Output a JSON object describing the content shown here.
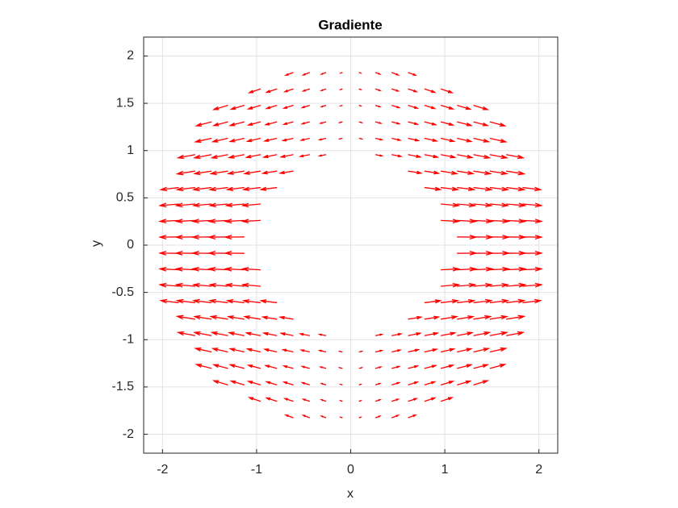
{
  "chart_data": {
    "type": "quiver",
    "title": "Gradiente",
    "x_label": "x",
    "y_label": "y",
    "color": "#ff0000",
    "grid": true,
    "xlim": [
      -2.2,
      2.2
    ],
    "ylim": [
      -2.2,
      2.2
    ],
    "xticks": [
      -2,
      -1,
      0,
      1,
      2
    ],
    "yticks": [
      -2,
      -1.5,
      -1,
      -0.5,
      0,
      0.5,
      1,
      1.5,
      2
    ],
    "x": [
      -2,
      -1.826,
      -1.652,
      -1.478,
      -1.304,
      -1.13,
      -0.957,
      -0.783,
      -0.609,
      -0.435,
      -0.261,
      -0.087,
      0.087,
      0.261,
      0.435,
      0.609,
      0.783,
      0.957,
      1.13,
      1.304,
      1.478,
      1.652,
      1.826,
      2
    ],
    "y": [
      -2,
      -1.826,
      -1.652,
      -1.478,
      -1.304,
      -1.13,
      -0.957,
      -0.783,
      -0.609,
      -0.435,
      -0.261,
      -0.087,
      0.087,
      0.261,
      0.435,
      0.609,
      0.783,
      0.957,
      1.13,
      1.304,
      1.478,
      1.652,
      1.826,
      2
    ],
    "u": [
      [
        null,
        null,
        null,
        null,
        null,
        null,
        null,
        null,
        null,
        null,
        null,
        null,
        null,
        null,
        null,
        null,
        null,
        null,
        null,
        null,
        null,
        null,
        null,
        null
      ],
      [
        null,
        null,
        null,
        null,
        null,
        null,
        null,
        null,
        -0.08,
        -0.07,
        -0.05,
        -0.02,
        0.02,
        0.05,
        0.07,
        0.08,
        null,
        null,
        null,
        null,
        null,
        null,
        null,
        null
      ],
      [
        null,
        null,
        null,
        null,
        null,
        null,
        -0.12,
        -0.11,
        -0.09,
        -0.07,
        -0.05,
        -0.02,
        0.02,
        0.05,
        0.07,
        0.09,
        0.11,
        0.12,
        null,
        null,
        null,
        null,
        null,
        null
      ],
      [
        null,
        null,
        null,
        null,
        -0.15,
        -0.14,
        -0.13,
        -0.11,
        -0.1,
        -0.08,
        -0.05,
        -0.02,
        0.02,
        0.05,
        0.08,
        0.1,
        0.11,
        0.13,
        0.14,
        0.15,
        null,
        null,
        null,
        null
      ],
      [
        null,
        null,
        null,
        -0.16,
        -0.15,
        -0.15,
        -0.13,
        -0.12,
        -0.1,
        -0.08,
        -0.06,
        -0.03,
        0.03,
        0.06,
        0.08,
        0.1,
        0.12,
        0.13,
        0.15,
        0.15,
        0.16,
        null,
        null,
        null
      ],
      [
        null,
        null,
        null,
        -0.17,
        -0.16,
        -0.15,
        -0.14,
        -0.13,
        -0.11,
        -0.09,
        -0.07,
        -0.03,
        0.03,
        0.07,
        0.09,
        0.11,
        0.13,
        0.14,
        0.15,
        0.16,
        0.17,
        null,
        null,
        null
      ],
      [
        null,
        null,
        -0.18,
        -0.18,
        -0.17,
        -0.16,
        -0.15,
        -0.14,
        -0.13,
        -0.1,
        -0.07,
        null,
        null,
        0.07,
        0.1,
        0.13,
        0.14,
        0.15,
        0.16,
        0.17,
        0.18,
        0.18,
        null,
        null
      ],
      [
        null,
        null,
        -0.19,
        -0.18,
        -0.18,
        -0.17,
        -0.17,
        -0.15,
        -0.14,
        null,
        null,
        null,
        null,
        null,
        null,
        0.14,
        0.15,
        0.17,
        0.17,
        0.18,
        0.18,
        0.19,
        null,
        null
      ],
      [
        null,
        -0.19,
        -0.19,
        -0.19,
        -0.19,
        -0.18,
        -0.18,
        -0.17,
        null,
        null,
        null,
        null,
        null,
        null,
        null,
        null,
        0.17,
        0.18,
        0.18,
        0.19,
        0.19,
        0.19,
        0.19,
        null
      ],
      [
        null,
        -0.2,
        -0.2,
        -0.19,
        -0.19,
        -0.19,
        -0.19,
        null,
        null,
        null,
        null,
        null,
        null,
        null,
        null,
        null,
        null,
        0.19,
        0.19,
        0.19,
        0.19,
        0.2,
        0.2,
        null
      ],
      [
        null,
        -0.2,
        -0.2,
        -0.2,
        -0.2,
        -0.2,
        -0.19,
        null,
        null,
        null,
        null,
        null,
        null,
        null,
        null,
        null,
        null,
        0.19,
        0.2,
        0.2,
        0.2,
        0.2,
        0.2,
        null
      ],
      [
        null,
        -0.2,
        -0.2,
        -0.2,
        -0.2,
        -0.2,
        null,
        null,
        null,
        null,
        null,
        null,
        null,
        null,
        null,
        null,
        null,
        null,
        0.2,
        0.2,
        0.2,
        0.2,
        0.2,
        null
      ],
      [
        null,
        -0.2,
        -0.2,
        -0.2,
        -0.2,
        -0.2,
        null,
        null,
        null,
        null,
        null,
        null,
        null,
        null,
        null,
        null,
        null,
        null,
        0.2,
        0.2,
        0.2,
        0.2,
        0.2,
        null
      ],
      [
        null,
        -0.2,
        -0.2,
        -0.2,
        -0.2,
        -0.2,
        -0.19,
        null,
        null,
        null,
        null,
        null,
        null,
        null,
        null,
        null,
        null,
        0.19,
        0.2,
        0.2,
        0.2,
        0.2,
        0.2,
        null
      ],
      [
        null,
        -0.2,
        -0.2,
        -0.19,
        -0.19,
        -0.19,
        -0.19,
        null,
        null,
        null,
        null,
        null,
        null,
        null,
        null,
        null,
        null,
        0.19,
        0.19,
        0.19,
        0.19,
        0.2,
        0.2,
        null
      ],
      [
        null,
        -0.19,
        -0.19,
        -0.19,
        -0.19,
        -0.18,
        -0.18,
        -0.17,
        null,
        null,
        null,
        null,
        null,
        null,
        null,
        null,
        0.17,
        0.18,
        0.18,
        0.19,
        0.19,
        0.19,
        0.19,
        null
      ],
      [
        null,
        null,
        -0.19,
        -0.18,
        -0.18,
        -0.17,
        -0.17,
        -0.15,
        -0.14,
        null,
        null,
        null,
        null,
        null,
        null,
        0.14,
        0.15,
        0.17,
        0.17,
        0.18,
        0.18,
        0.19,
        null,
        null
      ],
      [
        null,
        null,
        -0.18,
        -0.18,
        -0.17,
        -0.16,
        -0.15,
        -0.14,
        -0.13,
        -0.1,
        -0.07,
        null,
        null,
        0.07,
        0.1,
        0.13,
        0.14,
        0.15,
        0.16,
        0.17,
        0.18,
        0.18,
        null,
        null
      ],
      [
        null,
        null,
        null,
        -0.17,
        -0.16,
        -0.15,
        -0.14,
        -0.13,
        -0.11,
        -0.09,
        -0.07,
        -0.03,
        0.03,
        0.07,
        0.09,
        0.11,
        0.13,
        0.14,
        0.15,
        0.16,
        0.17,
        null,
        null,
        null
      ],
      [
        null,
        null,
        null,
        -0.16,
        -0.15,
        -0.15,
        -0.13,
        -0.12,
        -0.1,
        -0.08,
        -0.06,
        -0.03,
        0.03,
        0.06,
        0.08,
        0.1,
        0.12,
        0.13,
        0.15,
        0.15,
        0.16,
        null,
        null,
        null
      ],
      [
        null,
        null,
        null,
        null,
        -0.15,
        -0.14,
        -0.13,
        -0.11,
        -0.1,
        -0.08,
        -0.05,
        -0.02,
        0.02,
        0.05,
        0.08,
        0.1,
        0.11,
        0.13,
        0.14,
        0.15,
        null,
        null,
        null,
        null
      ],
      [
        null,
        null,
        null,
        null,
        null,
        null,
        -0.12,
        -0.11,
        -0.09,
        -0.07,
        -0.05,
        -0.02,
        0.02,
        0.05,
        0.07,
        0.09,
        0.11,
        0.12,
        null,
        null,
        null,
        null,
        null,
        null
      ],
      [
        null,
        null,
        null,
        null,
        null,
        null,
        null,
        null,
        -0.08,
        -0.07,
        -0.05,
        -0.02,
        0.02,
        0.05,
        0.07,
        0.08,
        null,
        null,
        null,
        null,
        null,
        null,
        null,
        null
      ],
      [
        null,
        null,
        null,
        null,
        null,
        null,
        null,
        null,
        null,
        null,
        null,
        null,
        null,
        null,
        null,
        null,
        null,
        null,
        null,
        null,
        null,
        null,
        null,
        null
      ]
    ],
    "v": [
      [
        null,
        null,
        null,
        null,
        null,
        null,
        null,
        null,
        null,
        null,
        null,
        null,
        null,
        null,
        null,
        null,
        null,
        null,
        null,
        null,
        null,
        null,
        null,
        null
      ],
      [
        null,
        null,
        null,
        null,
        null,
        null,
        null,
        null,
        0.029,
        0.026,
        0.018,
        0.007,
        0.007,
        0.018,
        0.026,
        0.029,
        null,
        null,
        null,
        null,
        null,
        null,
        null,
        null
      ],
      [
        null,
        null,
        null,
        null,
        null,
        null,
        0.04,
        0.036,
        0.03,
        0.023,
        0.017,
        0.007,
        0.007,
        0.017,
        0.023,
        0.03,
        0.036,
        0.04,
        null,
        null,
        null,
        null,
        null,
        null
      ],
      [
        null,
        null,
        null,
        null,
        0.044,
        0.041,
        0.038,
        0.033,
        0.03,
        0.024,
        0.015,
        0.006,
        0.006,
        0.015,
        0.024,
        0.03,
        0.033,
        0.038,
        0.041,
        0.044,
        null,
        null,
        null,
        null
      ],
      [
        null,
        null,
        null,
        0.042,
        0.039,
        0.039,
        0.034,
        0.031,
        0.026,
        0.021,
        0.016,
        0.008,
        0.008,
        0.016,
        0.021,
        0.026,
        0.031,
        0.034,
        0.039,
        0.039,
        0.042,
        null,
        null,
        null
      ],
      [
        null,
        null,
        null,
        0.038,
        0.036,
        0.034,
        0.032,
        0.029,
        0.025,
        0.02,
        0.016,
        0.007,
        0.007,
        0.016,
        0.02,
        0.025,
        0.029,
        0.032,
        0.034,
        0.036,
        0.038,
        null,
        null,
        null
      ],
      [
        null,
        null,
        0.034,
        0.034,
        0.033,
        0.031,
        0.029,
        0.027,
        0.025,
        0.019,
        0.013,
        null,
        null,
        0.013,
        0.019,
        0.025,
        0.027,
        0.029,
        0.031,
        0.033,
        0.034,
        0.034,
        null,
        null
      ],
      [
        null,
        null,
        0.03,
        0.028,
        0.028,
        0.027,
        0.027,
        0.023,
        0.022,
        null,
        null,
        null,
        null,
        null,
        null,
        0.022,
        0.023,
        0.027,
        0.027,
        0.028,
        0.028,
        0.03,
        null,
        null
      ],
      [
        null,
        0.023,
        0.023,
        0.023,
        0.023,
        0.022,
        0.022,
        0.021,
        null,
        null,
        null,
        null,
        null,
        null,
        null,
        null,
        0.021,
        0.022,
        0.022,
        0.023,
        0.023,
        0.023,
        0.023,
        null
      ],
      [
        null,
        0.017,
        0.017,
        0.017,
        0.017,
        0.017,
        0.017,
        null,
        null,
        null,
        null,
        null,
        null,
        null,
        null,
        null,
        null,
        0.017,
        0.017,
        0.017,
        0.017,
        0.017,
        0.017,
        null
      ],
      [
        null,
        0.01,
        0.01,
        0.01,
        0.01,
        0.01,
        0.01,
        null,
        null,
        null,
        null,
        null,
        null,
        null,
        null,
        null,
        null,
        0.01,
        0.01,
        0.01,
        0.01,
        0.01,
        0.01,
        null
      ],
      [
        null,
        0.003,
        0.003,
        0.003,
        0.003,
        0.003,
        null,
        null,
        null,
        null,
        null,
        null,
        null,
        null,
        null,
        null,
        null,
        null,
        0.003,
        0.003,
        0.003,
        0.003,
        0.003,
        null
      ],
      [
        null,
        -0.003,
        -0.003,
        -0.003,
        -0.003,
        -0.003,
        null,
        null,
        null,
        null,
        null,
        null,
        null,
        null,
        null,
        null,
        null,
        null,
        -0.003,
        -0.003,
        -0.003,
        -0.003,
        -0.003,
        null
      ],
      [
        null,
        -0.01,
        -0.01,
        -0.01,
        -0.01,
        -0.01,
        -0.01,
        null,
        null,
        null,
        null,
        null,
        null,
        null,
        null,
        null,
        null,
        -0.01,
        -0.01,
        -0.01,
        -0.01,
        -0.01,
        -0.01,
        null
      ],
      [
        null,
        -0.017,
        -0.017,
        -0.017,
        -0.017,
        -0.017,
        -0.017,
        null,
        null,
        null,
        null,
        null,
        null,
        null,
        null,
        null,
        null,
        -0.017,
        -0.017,
        -0.017,
        -0.017,
        -0.017,
        -0.017,
        null
      ],
      [
        null,
        -0.023,
        -0.023,
        -0.023,
        -0.023,
        -0.022,
        -0.022,
        -0.021,
        null,
        null,
        null,
        null,
        null,
        null,
        null,
        null,
        -0.021,
        -0.022,
        -0.022,
        -0.023,
        -0.023,
        -0.023,
        -0.023,
        null
      ],
      [
        null,
        null,
        -0.03,
        -0.028,
        -0.028,
        -0.027,
        -0.027,
        -0.023,
        -0.022,
        null,
        null,
        null,
        null,
        null,
        null,
        -0.022,
        -0.023,
        -0.027,
        -0.027,
        -0.028,
        -0.028,
        -0.03,
        null,
        null
      ],
      [
        null,
        null,
        -0.034,
        -0.034,
        -0.033,
        -0.031,
        -0.029,
        -0.027,
        -0.025,
        -0.019,
        -0.013,
        null,
        null,
        -0.013,
        -0.019,
        -0.025,
        -0.027,
        -0.029,
        -0.031,
        -0.033,
        -0.034,
        -0.034,
        null,
        null
      ],
      [
        null,
        null,
        null,
        -0.038,
        -0.036,
        -0.034,
        -0.032,
        -0.029,
        -0.025,
        -0.02,
        -0.016,
        -0.007,
        -0.007,
        -0.016,
        -0.02,
        -0.025,
        -0.029,
        -0.032,
        -0.034,
        -0.036,
        -0.038,
        null,
        null,
        null
      ],
      [
        null,
        null,
        null,
        -0.042,
        -0.039,
        -0.039,
        -0.034,
        -0.031,
        -0.026,
        -0.021,
        -0.016,
        -0.008,
        -0.008,
        -0.016,
        -0.021,
        -0.026,
        -0.031,
        -0.034,
        -0.039,
        -0.039,
        -0.042,
        null,
        null,
        null
      ],
      [
        null,
        null,
        null,
        null,
        -0.044,
        -0.041,
        -0.038,
        -0.033,
        -0.03,
        -0.024,
        -0.015,
        -0.006,
        -0.006,
        -0.015,
        -0.024,
        -0.03,
        -0.033,
        -0.038,
        -0.041,
        -0.044,
        null,
        null,
        null,
        null
      ],
      [
        null,
        null,
        null,
        null,
        null,
        null,
        -0.04,
        -0.036,
        -0.03,
        -0.023,
        -0.017,
        -0.007,
        -0.007,
        -0.017,
        -0.023,
        -0.03,
        -0.036,
        -0.04,
        null,
        null,
        null,
        null,
        null,
        null
      ],
      [
        null,
        null,
        null,
        null,
        null,
        null,
        null,
        null,
        -0.029,
        -0.026,
        -0.018,
        -0.007,
        -0.007,
        -0.018,
        -0.026,
        -0.029,
        null,
        null,
        null,
        null,
        null,
        null,
        null,
        null
      ],
      [
        null,
        null,
        null,
        null,
        null,
        null,
        null,
        null,
        null,
        null,
        null,
        null,
        null,
        null,
        null,
        null,
        null,
        null,
        null,
        null,
        null,
        null,
        null,
        null
      ]
    ]
  }
}
